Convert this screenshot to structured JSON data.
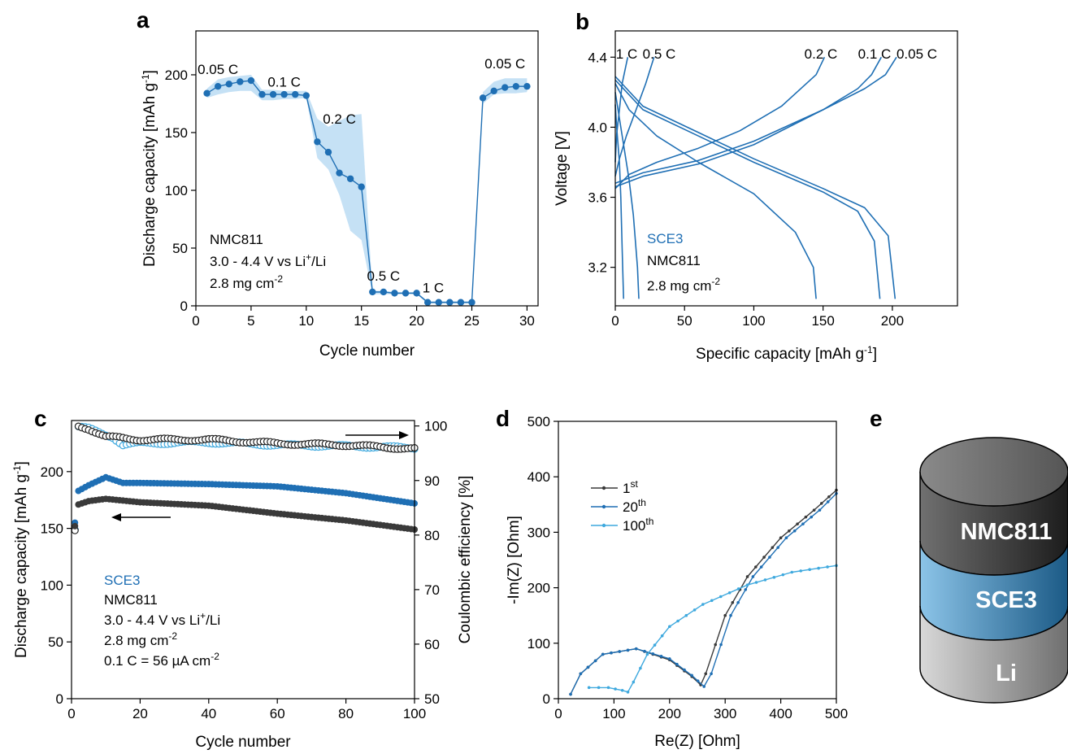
{
  "panels": {
    "a": {
      "letter": "a",
      "xlabel": "Cycle number",
      "ylabel": "Discharge capacity [mAh g",
      "ylabel_sup": "-1",
      "ylabel_end": "]"
    },
    "b": {
      "letter": "b",
      "xlabel": "Specific capacity [mAh g",
      "xlabel_sup": "-1",
      "xlabel_end": "]",
      "ylabel": "Voltage [V]"
    },
    "c": {
      "letter": "c",
      "xlabel": "Cycle number",
      "ylabel": "Discharge capacity [mAh g",
      "ylabel_sup": "-1",
      "ylabel_end": "]",
      "y2label": "Coulombic efficiency [%]"
    },
    "d": {
      "letter": "d",
      "xlabel": "Re(Z) [Ohm]",
      "ylabel": "-Im(Z) [Ohm]"
    },
    "e": {
      "letter": "e",
      "layers": [
        "NMC811",
        "SCE3",
        "Li"
      ]
    }
  },
  "annotations": {
    "a": {
      "line1": "NMC811",
      "line2_pre": "3.0 - 4.4 V vs Li",
      "line2_sup": "+",
      "line2_post": "/Li",
      "line3_pre": "2.8 mg cm",
      "line3_sup": "-2",
      "rates": [
        "0.05 C",
        "0.1 C",
        "0.2 C",
        "0.5 C",
        "1 C",
        "0.05 C"
      ]
    },
    "b": {
      "line1": "SCE3",
      "line2": "NMC811",
      "line3_pre": "2.8 mg cm",
      "line3_sup": "-2",
      "rates": [
        "1 C",
        "0.5 C",
        "0.2 C",
        "0.1 C",
        "0.05 C"
      ]
    },
    "c": {
      "line1": "SCE3",
      "line2": "NMC811",
      "line3_pre": "3.0 - 4.4 V vs Li",
      "line3_sup": "+",
      "line3_post": "/Li",
      "line4_pre": "2.8 mg cm",
      "line4_sup": "-2",
      "line5_pre": "0.1 C = 56 µA cm",
      "line5_sup": "-2"
    }
  },
  "colors": {
    "blue": "#1f6fb4",
    "light_blue": "#3fa9de",
    "dark": "#3a3a3a",
    "band": "#c5e1f5"
  },
  "chart_data": [
    {
      "id": "a",
      "type": "line",
      "xlabel": "Cycle number",
      "ylabel": "Discharge capacity [mAh g-1]",
      "xlim": [
        0,
        31
      ],
      "ylim": [
        0,
        238
      ],
      "xticks": [
        0,
        5,
        10,
        15,
        20,
        25,
        30
      ],
      "yticks": [
        0,
        50,
        100,
        150,
        200
      ],
      "series": [
        {
          "x": [
            1,
            2,
            3,
            4,
            5,
            6,
            7,
            8,
            9,
            10,
            11,
            12,
            13,
            14,
            15,
            16,
            17,
            18,
            19,
            20,
            21,
            22,
            23,
            24,
            25,
            26,
            27,
            28,
            29,
            30
          ],
          "values": [
            184,
            190,
            192,
            194,
            195,
            183,
            183,
            183,
            183,
            182,
            142,
            133,
            115,
            110,
            103,
            12,
            12,
            11,
            11,
            11,
            3,
            3,
            3,
            3,
            3,
            180,
            186,
            189,
            190,
            190
          ]
        }
      ],
      "band_upper": [
        188,
        196,
        198,
        199,
        200,
        187,
        187,
        186,
        186,
        186,
        162,
        155,
        160,
        165,
        166,
        13,
        13,
        12,
        12,
        12,
        4,
        4,
        4,
        4,
        4,
        185,
        194,
        197,
        197,
        197
      ],
      "band_lower": [
        180,
        183,
        185,
        186,
        186,
        178,
        178,
        179,
        179,
        180,
        128,
        118,
        96,
        65,
        57,
        10,
        10,
        10,
        10,
        10,
        2,
        2,
        2,
        2,
        2,
        175,
        183,
        184,
        184,
        185
      ]
    },
    {
      "id": "b",
      "type": "line",
      "xlabel": "Specific capacity [mAh g-1]",
      "ylabel": "Voltage [V]",
      "xlim": [
        0,
        247
      ],
      "ylim": [
        2.98,
        4.55
      ],
      "xticks": [
        0,
        50,
        100,
        150,
        200
      ],
      "yticks": [
        3.2,
        3.6,
        4.0,
        4.4
      ],
      "series": [
        {
          "name": "1 C",
          "charge": [
            [
              0,
              3.8
            ],
            [
              1,
              3.96
            ],
            [
              3,
              4.1
            ],
            [
              5,
              4.25
            ],
            [
              9,
              4.4
            ]
          ],
          "discharge": [
            [
              0,
              4.13
            ],
            [
              1,
              4.0
            ],
            [
              3,
              3.8
            ],
            [
              4,
              3.6
            ],
            [
              5,
              3.3
            ],
            [
              6,
              3.02
            ]
          ]
        },
        {
          "name": "0.5 C",
          "charge": [
            [
              0,
              3.72
            ],
            [
              3,
              3.82
            ],
            [
              8,
              3.95
            ],
            [
              15,
              4.1
            ],
            [
              22,
              4.25
            ],
            [
              28,
              4.4
            ]
          ],
          "discharge": [
            [
              0,
              4.2
            ],
            [
              3,
              4.05
            ],
            [
              6,
              3.9
            ],
            [
              10,
              3.7
            ],
            [
              13,
              3.5
            ],
            [
              16,
              3.2
            ],
            [
              17,
              3.02
            ]
          ]
        },
        {
          "name": "0.2 C",
          "charge": [
            [
              0,
              3.65
            ],
            [
              10,
              3.73
            ],
            [
              30,
              3.8
            ],
            [
              60,
              3.88
            ],
            [
              90,
              3.98
            ],
            [
              120,
              4.12
            ],
            [
              145,
              4.3
            ],
            [
              151,
              4.4
            ]
          ],
          "discharge": [
            [
              0,
              4.25
            ],
            [
              10,
              4.1
            ],
            [
              30,
              3.95
            ],
            [
              60,
              3.8
            ],
            [
              100,
              3.62
            ],
            [
              130,
              3.4
            ],
            [
              143,
              3.2
            ],
            [
              145,
              3.02
            ]
          ]
        },
        {
          "name": "0.1 C",
          "charge": [
            [
              0,
              3.66
            ],
            [
              20,
              3.72
            ],
            [
              60,
              3.79
            ],
            [
              100,
              3.9
            ],
            [
              150,
              4.1
            ],
            [
              175,
              4.22
            ],
            [
              185,
              4.3
            ],
            [
              192,
              4.4
            ]
          ],
          "discharge": [
            [
              0,
              4.27
            ],
            [
              20,
              4.1
            ],
            [
              60,
              3.95
            ],
            [
              100,
              3.8
            ],
            [
              150,
              3.63
            ],
            [
              175,
              3.52
            ],
            [
              187,
              3.35
            ],
            [
              191,
              3.02
            ]
          ]
        },
        {
          "name": "0.05 C",
          "charge": [
            [
              0,
              3.68
            ],
            [
              20,
              3.74
            ],
            [
              60,
              3.81
            ],
            [
              100,
              3.92
            ],
            [
              150,
              4.1
            ],
            [
              180,
              4.22
            ],
            [
              195,
              4.3
            ],
            [
              203,
              4.4
            ]
          ],
          "discharge": [
            [
              0,
              4.29
            ],
            [
              20,
              4.12
            ],
            [
              60,
              3.97
            ],
            [
              100,
              3.82
            ],
            [
              150,
              3.65
            ],
            [
              180,
              3.54
            ],
            [
              197,
              3.38
            ],
            [
              202,
              3.02
            ]
          ]
        }
      ]
    },
    {
      "id": "c",
      "type": "scatter",
      "xlabel": "Cycle number",
      "ylabel": "Discharge capacity [mAh g-1]",
      "y2label": "Coulombic efficiency [%]",
      "xlim": [
        0,
        100
      ],
      "ylim": [
        0,
        245
      ],
      "y2lim": [
        50,
        101
      ],
      "xticks": [
        0,
        20,
        40,
        60,
        80,
        100
      ],
      "yticks": [
        0,
        50,
        100,
        150,
        200
      ],
      "y2ticks": [
        50,
        60,
        70,
        80,
        90,
        100
      ],
      "capacity_blue": [
        [
          1,
          155
        ],
        [
          2,
          183
        ],
        [
          5,
          188
        ],
        [
          10,
          195
        ],
        [
          15,
          190
        ],
        [
          20,
          190
        ],
        [
          40,
          189
        ],
        [
          60,
          187
        ],
        [
          80,
          181
        ],
        [
          100,
          172
        ]
      ],
      "capacity_dark": [
        [
          1,
          152
        ],
        [
          2,
          171
        ],
        [
          5,
          174
        ],
        [
          10,
          176
        ],
        [
          20,
          173
        ],
        [
          40,
          170
        ],
        [
          60,
          163
        ],
        [
          80,
          157
        ],
        [
          100,
          149
        ]
      ],
      "ce_blue": [
        [
          1,
          81
        ],
        [
          2,
          99.8
        ],
        [
          5,
          99.5
        ],
        [
          12,
          98
        ],
        [
          15,
          96.5
        ],
        [
          20,
          96.8
        ],
        [
          40,
          97
        ],
        [
          60,
          96.5
        ],
        [
          80,
          96.3
        ],
        [
          100,
          96
        ]
      ],
      "ce_dark": [
        [
          1,
          80.8
        ],
        [
          2,
          100
        ],
        [
          5,
          99.5
        ],
        [
          10,
          98
        ],
        [
          20,
          97.5
        ],
        [
          40,
          97.5
        ],
        [
          60,
          96.8
        ],
        [
          80,
          96.5
        ],
        [
          100,
          95.8
        ]
      ]
    },
    {
      "id": "d",
      "type": "line",
      "xlabel": "Re(Z) [Ohm]",
      "ylabel": "-Im(Z) [Ohm]",
      "xlim": [
        0,
        500
      ],
      "ylim": [
        0,
        500
      ],
      "xticks": [
        0,
        100,
        200,
        300,
        400,
        500
      ],
      "yticks": [
        0,
        100,
        200,
        300,
        400,
        500
      ],
      "series": [
        {
          "name": "1st",
          "values": [
            [
              22,
              8
            ],
            [
              40,
              45
            ],
            [
              80,
              80
            ],
            [
              140,
              90
            ],
            [
              200,
              70
            ],
            [
              240,
              40
            ],
            [
              256,
              25
            ],
            [
              265,
              45
            ],
            [
              300,
              150
            ],
            [
              340,
              220
            ],
            [
              400,
              290
            ],
            [
              460,
              340
            ],
            [
              500,
              376
            ]
          ]
        },
        {
          "name": "20th",
          "values": [
            [
              22,
              8
            ],
            [
              40,
              45
            ],
            [
              80,
              80
            ],
            [
              140,
              90
            ],
            [
              200,
              72
            ],
            [
              240,
              42
            ],
            [
              262,
              22
            ],
            [
              275,
              45
            ],
            [
              310,
              150
            ],
            [
              350,
              220
            ],
            [
              410,
              290
            ],
            [
              470,
              340
            ],
            [
              500,
              370
            ]
          ]
        },
        {
          "name": "100th",
          "values": [
            [
              55,
              20
            ],
            [
              90,
              20
            ],
            [
              115,
              15
            ],
            [
              125,
              12
            ],
            [
              135,
              30
            ],
            [
              160,
              80
            ],
            [
              200,
              130
            ],
            [
              260,
              170
            ],
            [
              340,
              205
            ],
            [
              420,
              228
            ],
            [
              500,
              240
            ]
          ]
        }
      ]
    }
  ]
}
